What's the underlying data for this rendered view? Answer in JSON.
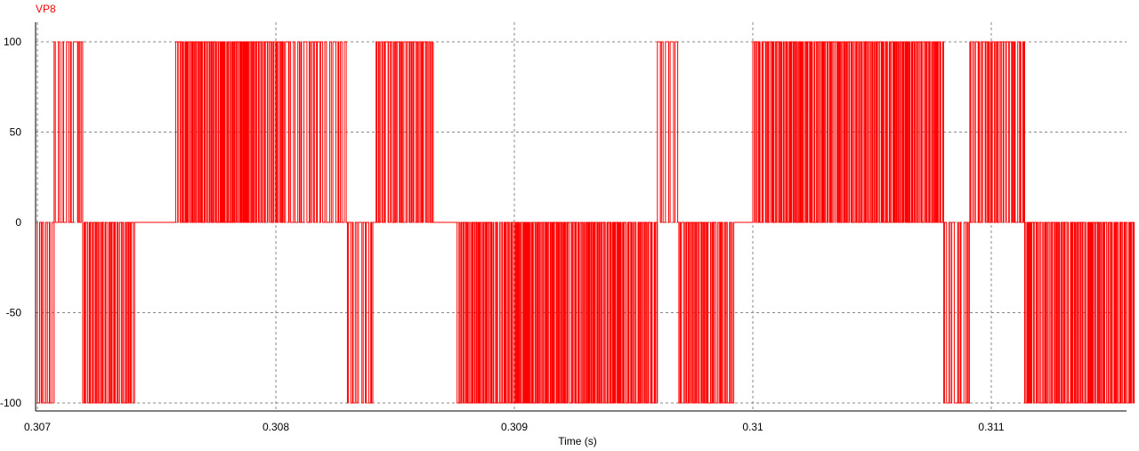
{
  "chart_data": {
    "type": "line",
    "title": "",
    "xlabel": "Time (s)",
    "ylabel": "",
    "xlim": [
      0.307,
      0.3116
    ],
    "ylim": [
      -100,
      100
    ],
    "x_ticks": [
      0.307,
      0.308,
      0.309,
      0.31,
      0.311
    ],
    "x_tick_labels": [
      "0.307",
      "0.308",
      "0.309",
      "0.31",
      "0.311"
    ],
    "y_ticks": [
      100,
      50,
      0,
      -50,
      -100
    ],
    "y_tick_labels": [
      "100",
      "50",
      "0",
      "-50",
      "-100"
    ],
    "grid": true,
    "colors": {
      "series": "#ff0000",
      "grid": "#888888",
      "axis": "#000000"
    },
    "series": [
      {
        "name": "VP8",
        "description_of_shape": "three-level PWM pulse train switching between 0 and +100 or 0 and -100",
        "segments": [
          {
            "start": 0.307,
            "end": 0.30707,
            "level": -100,
            "density": "medium"
          },
          {
            "start": 0.30707,
            "end": 0.30719,
            "level": 100,
            "density": "medium"
          },
          {
            "start": 0.30719,
            "end": 0.30741,
            "level": -100,
            "density": "high"
          },
          {
            "start": 0.30741,
            "end": 0.30758,
            "level": 0,
            "density": "none"
          },
          {
            "start": 0.30758,
            "end": 0.30803,
            "level": 100,
            "density": "very-high"
          },
          {
            "start": 0.30803,
            "end": 0.3083,
            "level": 100,
            "density": "medium"
          },
          {
            "start": 0.3083,
            "end": 0.30842,
            "level": -100,
            "density": "medium"
          },
          {
            "start": 0.30842,
            "end": 0.30866,
            "level": 100,
            "density": "high"
          },
          {
            "start": 0.30866,
            "end": 0.30876,
            "level": 0,
            "density": "none"
          },
          {
            "start": 0.30876,
            "end": 0.3096,
            "level": -100,
            "density": "very-high"
          },
          {
            "start": 0.3096,
            "end": 0.30969,
            "level": 100,
            "density": "medium"
          },
          {
            "start": 0.30969,
            "end": 0.30992,
            "level": -100,
            "density": "high"
          },
          {
            "start": 0.30992,
            "end": 0.31,
            "level": 0,
            "density": "none"
          },
          {
            "start": 0.31,
            "end": 0.3108,
            "level": 100,
            "density": "very-high"
          },
          {
            "start": 0.3108,
            "end": 0.31091,
            "level": -100,
            "density": "medium"
          },
          {
            "start": 0.31091,
            "end": 0.31114,
            "level": 100,
            "density": "high"
          },
          {
            "start": 0.31114,
            "end": 0.3116,
            "level": -100,
            "density": "very-high"
          }
        ]
      }
    ]
  }
}
